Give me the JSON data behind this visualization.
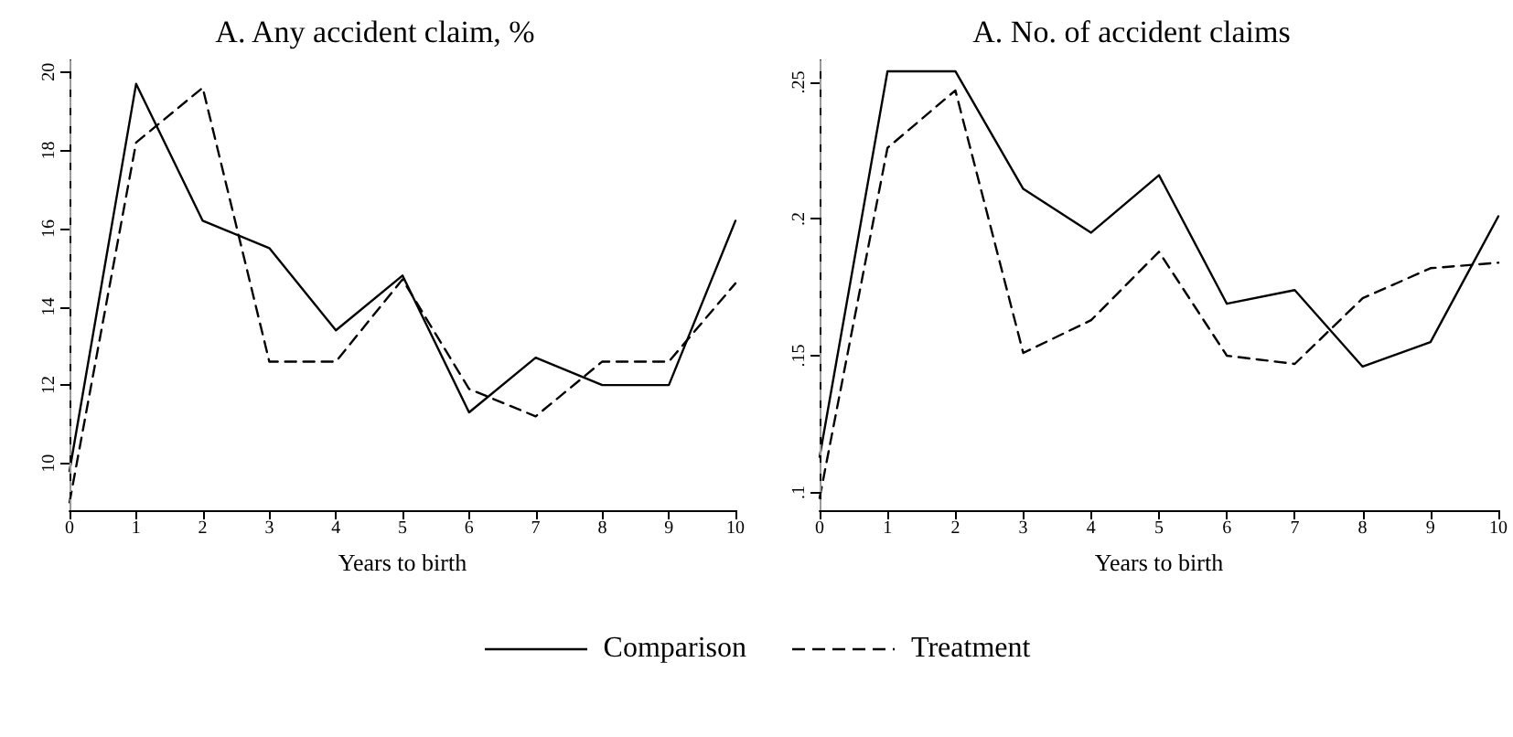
{
  "chart_data": [
    {
      "type": "line",
      "title": "A. Any accident claim, %",
      "xlabel": "Years to birth",
      "x": [
        0,
        1,
        2,
        3,
        4,
        5,
        6,
        7,
        8,
        9,
        10
      ],
      "xlim": [
        0,
        10
      ],
      "xticks": [
        0,
        1,
        2,
        3,
        4,
        5,
        6,
        7,
        8,
        9,
        10
      ],
      "ylim": [
        8.8,
        20.3
      ],
      "yticks": [
        10,
        12,
        14,
        16,
        18,
        20
      ],
      "grid": false,
      "legend": "bottom",
      "marker": "none",
      "series": [
        {
          "name": "Comparison",
          "color": "#000000",
          "line_style": "solid",
          "values": [
            9.8,
            19.7,
            16.2,
            15.5,
            13.4,
            14.8,
            11.3,
            12.7,
            12.0,
            12.0,
            16.2
          ]
        },
        {
          "name": "Treatment",
          "color": "#000000",
          "line_style": "dashed",
          "values": [
            9.0,
            18.2,
            19.6,
            12.6,
            12.6,
            14.7,
            11.9,
            11.2,
            12.6,
            12.6,
            14.6
          ]
        }
      ],
      "ref_lines": [
        {
          "axis": "x",
          "value": 0,
          "color": "#999999",
          "line_style": "dashed"
        }
      ]
    },
    {
      "type": "line",
      "title": "A. No. of accident claims",
      "xlabel": "Years to birth",
      "x": [
        0,
        1,
        2,
        3,
        4,
        5,
        6,
        7,
        8,
        9,
        10
      ],
      "xlim": [
        0,
        10
      ],
      "xticks": [
        0,
        1,
        2,
        3,
        4,
        5,
        6,
        7,
        8,
        9,
        10
      ],
      "ylim": [
        0.0935,
        0.258
      ],
      "yticks": [
        {
          "value": 0.1,
          "label": ".1"
        },
        {
          "value": 0.15,
          "label": ".15"
        },
        {
          "value": 0.2,
          "label": ".2"
        },
        {
          "value": 0.25,
          "label": ".25"
        }
      ],
      "grid": false,
      "marker": "none",
      "series": [
        {
          "color": "#000000",
          "line_style": "solid",
          "values": [
            0.113,
            0.254,
            0.254,
            0.211,
            0.195,
            0.216,
            0.169,
            0.174,
            0.146,
            0.155,
            0.201
          ]
        },
        {
          "color": "#000000",
          "line_style": "dashed",
          "values": [
            0.098,
            0.226,
            0.247,
            0.151,
            0.163,
            0.188,
            0.15,
            0.147,
            0.171,
            0.182,
            0.184
          ]
        }
      ],
      "ref_lines": [
        {
          "axis": "x",
          "value": 0,
          "color": "#999999",
          "line_style": "dashed"
        }
      ]
    }
  ]
}
